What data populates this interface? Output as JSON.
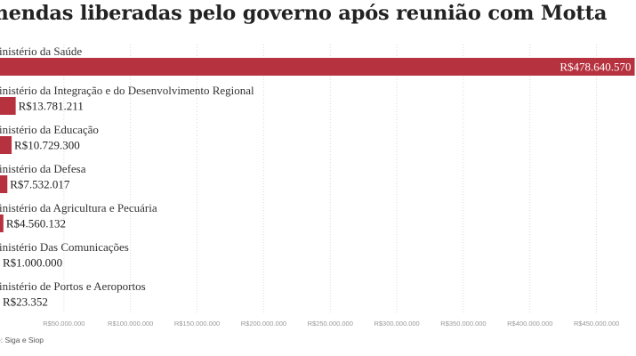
{
  "chart_data": {
    "type": "bar",
    "orientation": "horizontal",
    "title": "mendas liberadas pelo governo após reunião com Motta",
    "categories": [
      "inistério da Saúde",
      "inistério da Integração e do Desenvolvimento Regional",
      "inistério da Educação",
      "inistério da Defesa",
      "inistério da Agricultura e Pecuária",
      "inistério Das Comunicações",
      "inistério de Portos e Aeroportos"
    ],
    "values": [
      478640570,
      13781211,
      10729300,
      7532017,
      4560132,
      1000000,
      23352
    ],
    "value_labels": [
      "R$478.640.570",
      "R$13.781.211",
      "R$10.729.300",
      "R$7.532.017",
      "R$4.560.132",
      "R$1.000.000",
      "R$23.352"
    ],
    "xlim": [
      0,
      480000000
    ],
    "ticks": [
      50000000,
      100000000,
      150000000,
      200000000,
      250000000,
      300000000,
      350000000,
      400000000,
      450000000
    ],
    "tick_labels": [
      "R$50.000.000",
      "R$100.000.000",
      "R$150.000.000",
      "R$200.000.000",
      "R$250.000.000",
      "R$300.000.000",
      "R$350.000.000",
      "R$400.000.000",
      "R$450.000.000"
    ],
    "grid": true,
    "bar_color": "#b6323f",
    "source": "e: Siga e Siop"
  }
}
